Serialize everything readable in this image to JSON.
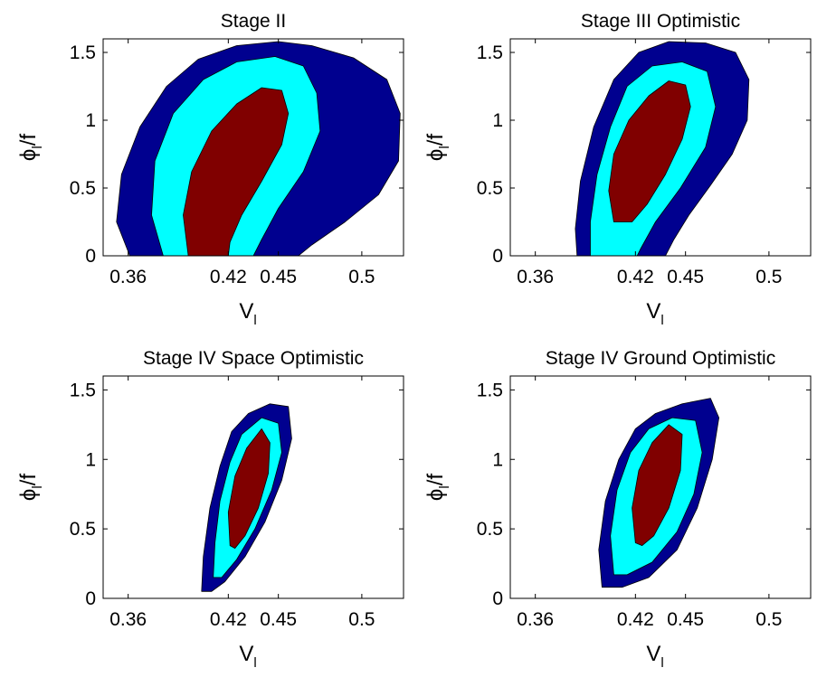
{
  "colors": {
    "outer": "#00008f",
    "middle": "#00ffff",
    "inner": "#800000",
    "axis": "#000000"
  },
  "chart_data": [
    {
      "type": "contour",
      "title": "Stage II",
      "xlabel": "V_l",
      "ylabel": "φ_l/f",
      "xlim": [
        0.345,
        0.525
      ],
      "ylim": [
        0,
        1.6
      ],
      "xticks": [
        0.36,
        0.42,
        0.45,
        0.5
      ],
      "yticks": [
        0,
        0.5,
        1,
        1.5
      ],
      "series": [
        {
          "level": "outer",
          "points": [
            [
              0.361,
              0
            ],
            [
              0.353,
              0.25
            ],
            [
              0.356,
              0.6
            ],
            [
              0.367,
              0.95
            ],
            [
              0.383,
              1.25
            ],
            [
              0.402,
              1.45
            ],
            [
              0.425,
              1.55
            ],
            [
              0.45,
              1.58
            ],
            [
              0.47,
              1.55
            ],
            [
              0.495,
              1.46
            ],
            [
              0.515,
              1.3
            ],
            [
              0.523,
              1.05
            ],
            [
              0.522,
              0.7
            ],
            [
              0.51,
              0.45
            ],
            [
              0.49,
              0.25
            ],
            [
              0.47,
              0.08
            ],
            [
              0.462,
              0
            ]
          ]
        },
        {
          "level": "middle",
          "points": [
            [
              0.381,
              0
            ],
            [
              0.374,
              0.3
            ],
            [
              0.376,
              0.7
            ],
            [
              0.387,
              1.05
            ],
            [
              0.405,
              1.3
            ],
            [
              0.425,
              1.43
            ],
            [
              0.448,
              1.47
            ],
            [
              0.465,
              1.4
            ],
            [
              0.473,
              1.2
            ],
            [
              0.475,
              0.92
            ],
            [
              0.465,
              0.62
            ],
            [
              0.45,
              0.35
            ],
            [
              0.44,
              0.12
            ],
            [
              0.435,
              0
            ]
          ]
        },
        {
          "level": "inner",
          "points": [
            [
              0.396,
              0
            ],
            [
              0.393,
              0.3
            ],
            [
              0.398,
              0.62
            ],
            [
              0.41,
              0.92
            ],
            [
              0.425,
              1.12
            ],
            [
              0.44,
              1.24
            ],
            [
              0.452,
              1.22
            ],
            [
              0.456,
              1.05
            ],
            [
              0.452,
              0.82
            ],
            [
              0.44,
              0.55
            ],
            [
              0.428,
              0.3
            ],
            [
              0.421,
              0.1
            ],
            [
              0.42,
              0
            ]
          ]
        }
      ]
    },
    {
      "type": "contour",
      "title": "Stage III Optimistic",
      "xlabel": "V_l",
      "ylabel": "φ_l/f",
      "xlim": [
        0.345,
        0.525
      ],
      "ylim": [
        0,
        1.6
      ],
      "xticks": [
        0.36,
        0.42,
        0.45,
        0.5
      ],
      "yticks": [
        0,
        0.5,
        1,
        1.5
      ],
      "series": [
        {
          "level": "outer",
          "points": [
            [
              0.385,
              0
            ],
            [
              0.384,
              0.2
            ],
            [
              0.387,
              0.55
            ],
            [
              0.395,
              0.95
            ],
            [
              0.407,
              1.3
            ],
            [
              0.422,
              1.5
            ],
            [
              0.44,
              1.58
            ],
            [
              0.462,
              1.57
            ],
            [
              0.48,
              1.5
            ],
            [
              0.488,
              1.3
            ],
            [
              0.487,
              1.0
            ],
            [
              0.478,
              0.75
            ],
            [
              0.465,
              0.52
            ],
            [
              0.452,
              0.3
            ],
            [
              0.443,
              0.12
            ],
            [
              0.438,
              0
            ]
          ]
        },
        {
          "level": "middle",
          "points": [
            [
              0.393,
              0
            ],
            [
              0.393,
              0.25
            ],
            [
              0.397,
              0.6
            ],
            [
              0.405,
              0.95
            ],
            [
              0.415,
              1.25
            ],
            [
              0.43,
              1.4
            ],
            [
              0.448,
              1.43
            ],
            [
              0.463,
              1.36
            ],
            [
              0.468,
              1.1
            ],
            [
              0.462,
              0.8
            ],
            [
              0.447,
              0.5
            ],
            [
              0.432,
              0.25
            ],
            [
              0.423,
              0.05
            ],
            [
              0.421,
              0
            ]
          ]
        },
        {
          "level": "inner",
          "points": [
            [
              0.407,
              0.25
            ],
            [
              0.404,
              0.48
            ],
            [
              0.407,
              0.75
            ],
            [
              0.416,
              1.0
            ],
            [
              0.428,
              1.18
            ],
            [
              0.44,
              1.29
            ],
            [
              0.45,
              1.26
            ],
            [
              0.453,
              1.1
            ],
            [
              0.448,
              0.86
            ],
            [
              0.438,
              0.6
            ],
            [
              0.427,
              0.38
            ],
            [
              0.418,
              0.25
            ]
          ]
        }
      ]
    },
    {
      "type": "contour",
      "title": "Stage IV Space Optimistic",
      "xlabel": "V_l",
      "ylabel": "φ_l/f",
      "xlim": [
        0.345,
        0.525
      ],
      "ylim": [
        0,
        1.6
      ],
      "xticks": [
        0.36,
        0.42,
        0.45,
        0.5
      ],
      "yticks": [
        0,
        0.5,
        1,
        1.5
      ],
      "series": [
        {
          "level": "outer",
          "points": [
            [
              0.404,
              0.05
            ],
            [
              0.405,
              0.3
            ],
            [
              0.409,
              0.65
            ],
            [
              0.415,
              0.95
            ],
            [
              0.422,
              1.2
            ],
            [
              0.432,
              1.33
            ],
            [
              0.445,
              1.4
            ],
            [
              0.456,
              1.38
            ],
            [
              0.458,
              1.15
            ],
            [
              0.452,
              0.85
            ],
            [
              0.442,
              0.55
            ],
            [
              0.43,
              0.3
            ],
            [
              0.418,
              0.12
            ],
            [
              0.41,
              0.05
            ]
          ]
        },
        {
          "level": "middle",
          "points": [
            [
              0.411,
              0.15
            ],
            [
              0.412,
              0.4
            ],
            [
              0.415,
              0.7
            ],
            [
              0.421,
              0.98
            ],
            [
              0.428,
              1.18
            ],
            [
              0.44,
              1.3
            ],
            [
              0.45,
              1.26
            ],
            [
              0.452,
              1.05
            ],
            [
              0.446,
              0.78
            ],
            [
              0.436,
              0.5
            ],
            [
              0.425,
              0.28
            ],
            [
              0.416,
              0.15
            ]
          ]
        },
        {
          "level": "inner",
          "points": [
            [
              0.421,
              0.38
            ],
            [
              0.42,
              0.62
            ],
            [
              0.424,
              0.88
            ],
            [
              0.431,
              1.08
            ],
            [
              0.44,
              1.22
            ],
            [
              0.445,
              1.12
            ],
            [
              0.444,
              0.9
            ],
            [
              0.438,
              0.65
            ],
            [
              0.43,
              0.45
            ],
            [
              0.424,
              0.36
            ]
          ]
        }
      ]
    },
    {
      "type": "contour",
      "title": "Stage IV Ground Optimistic",
      "xlabel": "V_l",
      "ylabel": "φ_l/f",
      "xlim": [
        0.345,
        0.525
      ],
      "ylim": [
        0,
        1.6
      ],
      "xticks": [
        0.36,
        0.42,
        0.45,
        0.5
      ],
      "yticks": [
        0,
        0.5,
        1,
        1.5
      ],
      "series": [
        {
          "level": "outer",
          "points": [
            [
              0.4,
              0.08
            ],
            [
              0.398,
              0.35
            ],
            [
              0.402,
              0.7
            ],
            [
              0.41,
              1.0
            ],
            [
              0.42,
              1.22
            ],
            [
              0.432,
              1.33
            ],
            [
              0.448,
              1.4
            ],
            [
              0.465,
              1.44
            ],
            [
              0.47,
              1.3
            ],
            [
              0.466,
              1.0
            ],
            [
              0.457,
              0.65
            ],
            [
              0.445,
              0.35
            ],
            [
              0.428,
              0.15
            ],
            [
              0.412,
              0.08
            ]
          ]
        },
        {
          "level": "middle",
          "points": [
            [
              0.407,
              0.17
            ],
            [
              0.405,
              0.45
            ],
            [
              0.409,
              0.78
            ],
            [
              0.417,
              1.05
            ],
            [
              0.428,
              1.22
            ],
            [
              0.442,
              1.3
            ],
            [
              0.456,
              1.28
            ],
            [
              0.46,
              1.05
            ],
            [
              0.455,
              0.75
            ],
            [
              0.445,
              0.48
            ],
            [
              0.43,
              0.26
            ],
            [
              0.415,
              0.17
            ]
          ]
        },
        {
          "level": "inner",
          "points": [
            [
              0.42,
              0.4
            ],
            [
              0.418,
              0.65
            ],
            [
              0.422,
              0.92
            ],
            [
              0.43,
              1.12
            ],
            [
              0.44,
              1.25
            ],
            [
              0.448,
              1.18
            ],
            [
              0.447,
              0.92
            ],
            [
              0.44,
              0.65
            ],
            [
              0.431,
              0.45
            ],
            [
              0.424,
              0.38
            ]
          ]
        }
      ]
    }
  ]
}
